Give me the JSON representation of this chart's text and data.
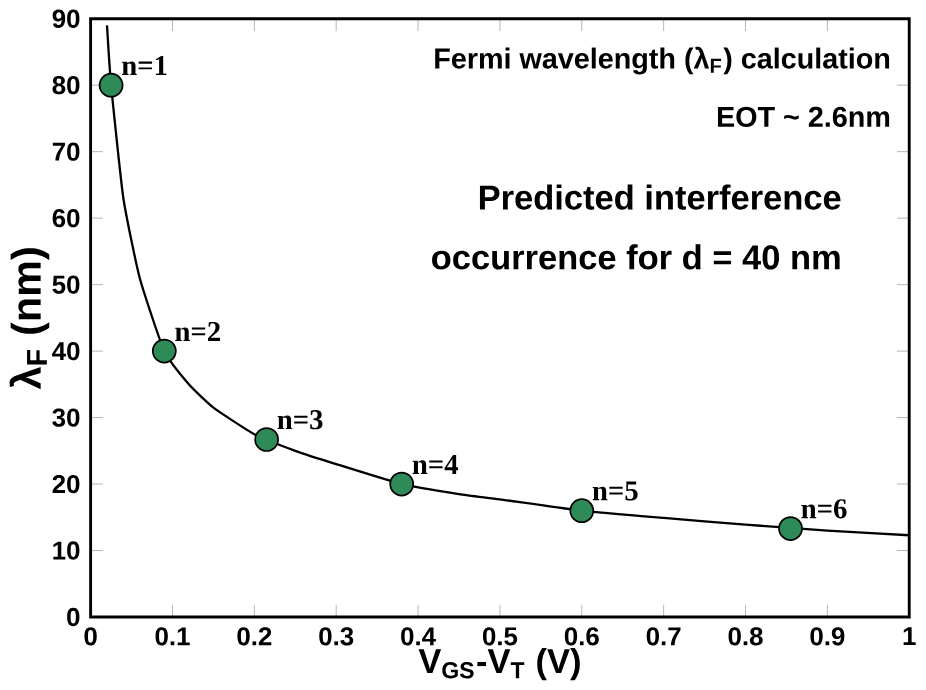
{
  "chart_data": {
    "type": "scatter",
    "xlabel": "V$_{GS}$-V$_{T}$ (V)",
    "ylabel": "λ$_{F}$ (nm)",
    "xlim": [
      0,
      1
    ],
    "ylim": [
      0,
      90
    ],
    "xticks": [
      0,
      0.1,
      0.2,
      0.3,
      0.4,
      0.5,
      0.6,
      0.7,
      0.8,
      0.9,
      1
    ],
    "yticks": [
      0,
      10,
      20,
      30,
      40,
      50,
      60,
      70,
      80,
      90
    ],
    "series": [
      {
        "type": "line",
        "color": "#000000",
        "marker": "none",
        "x": [
          0.02,
          0.025,
          0.04,
          0.06,
          0.09,
          0.12,
          0.15,
          0.2,
          0.25,
          0.3,
          0.38,
          0.45,
          0.5,
          0.6,
          0.7,
          0.8,
          0.9,
          1.0
        ],
        "values": [
          89,
          80,
          63,
          51,
          40,
          35,
          31.5,
          27.5,
          25,
          23,
          20,
          18.5,
          17.7,
          16,
          14.9,
          13.9,
          13,
          12.3
        ]
      },
      {
        "color": "#2e8b57",
        "marker": "circle",
        "x": [
          0.025,
          0.09,
          0.215,
          0.38,
          0.6,
          0.855
        ],
        "values": [
          80,
          40,
          26.7,
          20,
          16,
          13.3
        ]
      }
    ],
    "annotations": [
      "Fermi wavelength (λ$_{F}$) calculation",
      "EOT ~ 2.6nm",
      "Predicted interference",
      "occurrence for d = 40 nm",
      {
        "text": "n=1",
        "x": 0.025,
        "y": 80
      },
      {
        "text": "n=2",
        "x": 0.09,
        "y": 40
      },
      {
        "text": "n=3",
        "x": 0.215,
        "y": 26.7
      },
      {
        "text": "n=4",
        "x": 0.38,
        "y": 20
      },
      {
        "text": "n=5",
        "x": 0.6,
        "y": 16
      },
      {
        "text": "n=6",
        "x": 0.855,
        "y": 13.3
      }
    ]
  }
}
